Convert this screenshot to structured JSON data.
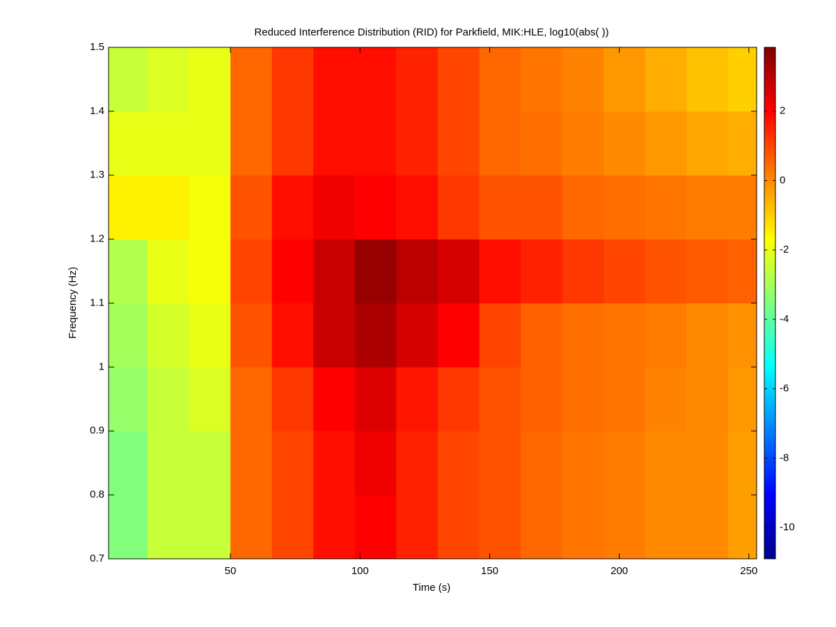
{
  "chart_data": {
    "type": "heatmap",
    "title": "Reduced Interference Distribution (RID) for Parkfield, MIK:HLE, log10(abs( ))",
    "x_label": "Time (s)",
    "y_label": "Frequency (Hz)",
    "x": [
      10,
      26,
      42,
      58,
      74,
      90,
      106,
      122,
      138,
      154,
      170,
      186,
      202,
      218,
      234,
      250
    ],
    "y": [
      0.75,
      0.85,
      0.95,
      1.05,
      1.15,
      1.25,
      1.35,
      1.45
    ],
    "z": [
      [
        -3.5,
        -2.5,
        -2.5,
        0.5,
        1,
        1.8,
        2,
        1.5,
        1,
        0.8,
        0.5,
        0.3,
        0.2,
        0,
        0,
        -0.3
      ],
      [
        -3.5,
        -2.5,
        -2.5,
        0.5,
        1,
        1.8,
        2.2,
        1.5,
        1,
        0.8,
        0.5,
        0.3,
        0.2,
        0,
        0,
        -0.3
      ],
      [
        -3.2,
        -2.5,
        -2.2,
        0.5,
        1.2,
        2,
        2.5,
        1.7,
        1.2,
        0.8,
        0.6,
        0.4,
        0.3,
        0.1,
        0,
        -0.2
      ],
      [
        -3,
        -2.3,
        -2,
        0.8,
        1.8,
        2.8,
        3.2,
        2.6,
        2,
        1,
        0.6,
        0.4,
        0.3,
        0.2,
        0,
        -0.1
      ],
      [
        -2.8,
        -2,
        -1.8,
        1,
        2,
        2.8,
        3.5,
        3,
        2.6,
        1.8,
        1.5,
        1.2,
        1,
        0.8,
        0.7,
        0.6
      ],
      [
        -1.5,
        -1.5,
        -1.8,
        0.8,
        1.8,
        2.2,
        2,
        1.8,
        1.2,
        0.8,
        0.8,
        0.5,
        0.4,
        0.3,
        0.2,
        0.2
      ],
      [
        -2,
        -2,
        -2,
        0.5,
        1.2,
        1.8,
        1.8,
        1.5,
        1,
        0.5,
        0.4,
        0.2,
        0,
        -0.2,
        -0.4,
        -0.5
      ],
      [
        -2.5,
        -2.2,
        -2,
        0.5,
        1.2,
        1.8,
        1.8,
        1.5,
        1,
        0.5,
        0.3,
        0.1,
        -0.2,
        -0.5,
        -0.8,
        -1
      ]
    ],
    "xlim": [
      3,
      253
    ],
    "xticks": [
      50,
      100,
      150,
      200,
      250
    ],
    "ylim": [
      0.7,
      1.5
    ],
    "yticks": [
      0.7,
      0.8,
      0.9,
      1,
      1.1,
      1.2,
      1.3,
      1.4,
      1.5
    ],
    "clim": [
      -10.9,
      3.84
    ],
    "cticks": [
      -10,
      -8,
      -6,
      -4,
      -2,
      0,
      2
    ],
    "colormap": "jet"
  }
}
